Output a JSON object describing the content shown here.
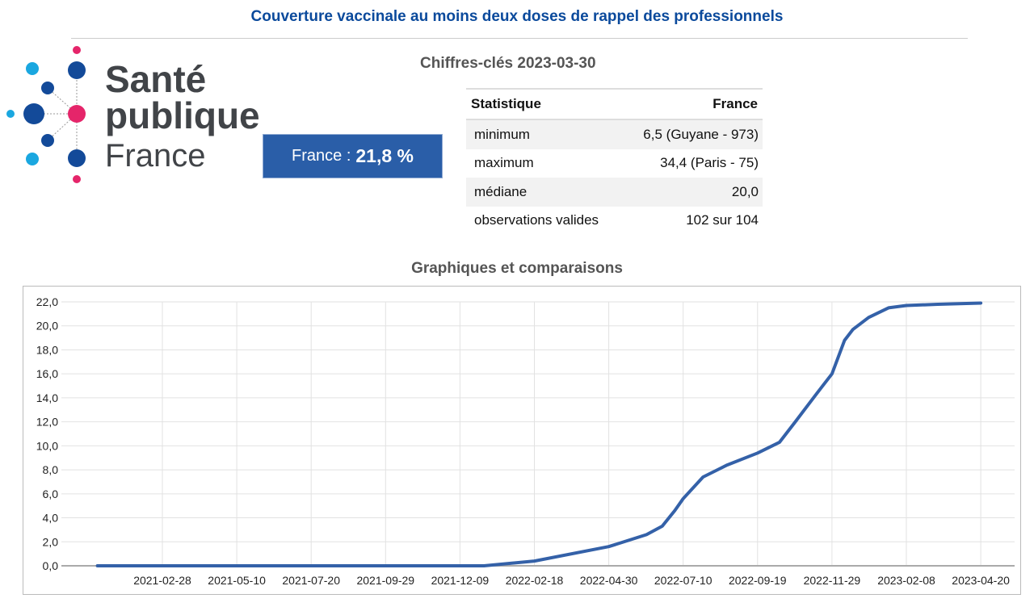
{
  "header": {
    "title": "Couverture vaccinale au moins deux doses de rappel des professionnels"
  },
  "logo": {
    "line1": "Santé",
    "line2": "publique",
    "line3": "France"
  },
  "kpi": {
    "label": "France : ",
    "value": "21,8 %"
  },
  "key_figures": {
    "title": "Chiffres-clés 2023-03-30",
    "headers": [
      "Statistique",
      "France"
    ],
    "rows": [
      [
        "minimum",
        "6,5 (Guyane - 973)"
      ],
      [
        "maximum",
        "34,4 (Paris - 75)"
      ],
      [
        "médiane",
        "20,0"
      ],
      [
        "observations valides",
        "102 sur 104"
      ]
    ]
  },
  "charts_section": {
    "title": "Graphiques et comparaisons"
  },
  "colors": {
    "line": "#3461a8",
    "brand_blue": "#0b4a9c",
    "kpi_bg": "#2a5ea8"
  },
  "chart_data": {
    "type": "line",
    "ylim": [
      0,
      22
    ],
    "yticks": [
      "0,0",
      "2,0",
      "4,0",
      "6,0",
      "8,0",
      "10,0",
      "12,0",
      "14,0",
      "16,0",
      "18,0",
      "20,0",
      "22,0"
    ],
    "xticks": [
      "2021-02-28",
      "2021-05-10",
      "2021-07-20",
      "2021-09-29",
      "2021-12-09",
      "2022-02-18",
      "2022-04-30",
      "2022-07-10",
      "2022-09-19",
      "2022-11-29",
      "2023-02-08",
      "2023-04-20"
    ],
    "series": [
      {
        "name": "France",
        "points": [
          [
            "2020-12-28",
            0
          ],
          [
            "2022-01-01",
            0
          ],
          [
            "2022-02-18",
            0.4
          ],
          [
            "2022-04-30",
            1.6
          ],
          [
            "2022-06-05",
            2.6
          ],
          [
            "2022-06-20",
            3.3
          ],
          [
            "2022-07-02",
            4.6
          ],
          [
            "2022-07-10",
            5.6
          ],
          [
            "2022-07-29",
            7.4
          ],
          [
            "2022-08-21",
            8.4
          ],
          [
            "2022-09-19",
            9.4
          ],
          [
            "2022-10-10",
            10.3
          ],
          [
            "2022-10-25",
            12.0
          ],
          [
            "2022-11-14",
            14.3
          ],
          [
            "2022-11-29",
            16.0
          ],
          [
            "2022-12-11",
            18.8
          ],
          [
            "2022-12-19",
            19.7
          ],
          [
            "2023-01-03",
            20.7
          ],
          [
            "2023-01-22",
            21.5
          ],
          [
            "2023-02-08",
            21.7
          ],
          [
            "2023-03-10",
            21.8
          ],
          [
            "2023-04-20",
            21.9
          ]
        ]
      }
    ]
  }
}
